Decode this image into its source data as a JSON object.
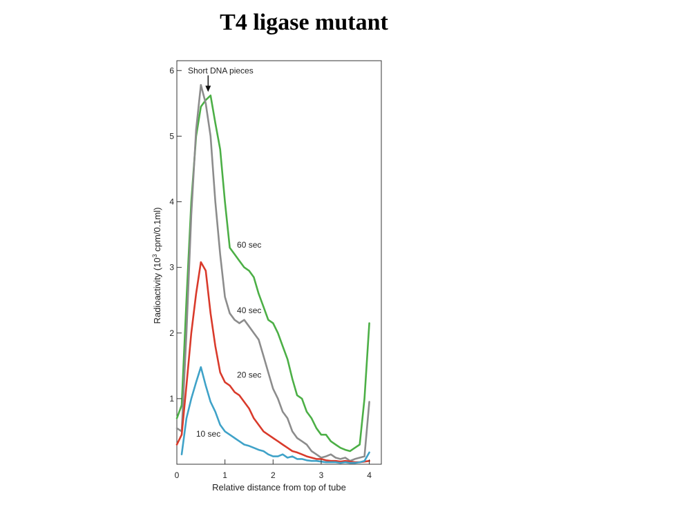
{
  "slide": {
    "title": "T4 ligase mutant"
  },
  "chart_data": {
    "type": "line",
    "xlabel": "Relative distance from top of tube",
    "ylabel_prefix": "Radioactivity (10",
    "ylabel_sup": "3",
    "ylabel_suffix": " cpm/0.1ml)",
    "xlim": [
      0,
      4.25
    ],
    "ylim": [
      0,
      6.15
    ],
    "xticks": [
      0,
      1,
      2,
      3,
      4
    ],
    "yticks": [
      1,
      2,
      3,
      4,
      5,
      6
    ],
    "grid": false,
    "annotation": {
      "text": "Short DNA pieces",
      "x": 0.65,
      "y": 6.0
    },
    "series": [
      {
        "name": "60 sec",
        "color": "#4caf46",
        "label_at": [
          1.25,
          3.3
        ],
        "x": [
          0.0,
          0.1,
          0.2,
          0.3,
          0.4,
          0.5,
          0.6,
          0.7,
          0.8,
          0.9,
          1.0,
          1.1,
          1.2,
          1.3,
          1.4,
          1.5,
          1.6,
          1.7,
          1.8,
          1.9,
          2.0,
          2.1,
          2.2,
          2.3,
          2.4,
          2.5,
          2.6,
          2.7,
          2.8,
          2.9,
          3.0,
          3.1,
          3.2,
          3.3,
          3.4,
          3.5,
          3.6,
          3.7,
          3.8,
          3.9,
          4.0
        ],
        "y": [
          0.7,
          0.9,
          2.5,
          4.0,
          5.0,
          5.45,
          5.55,
          5.62,
          5.2,
          4.8,
          4.0,
          3.3,
          3.2,
          3.1,
          3.0,
          2.95,
          2.85,
          2.6,
          2.4,
          2.2,
          2.15,
          2.0,
          1.8,
          1.6,
          1.3,
          1.05,
          1.0,
          0.8,
          0.7,
          0.55,
          0.45,
          0.45,
          0.35,
          0.3,
          0.25,
          0.22,
          0.2,
          0.25,
          0.3,
          1.0,
          2.15
        ]
      },
      {
        "name": "40 sec",
        "color": "#8c8c8c",
        "label_at": [
          1.25,
          2.3
        ],
        "x": [
          0.0,
          0.1,
          0.2,
          0.3,
          0.4,
          0.5,
          0.6,
          0.7,
          0.8,
          0.9,
          1.0,
          1.1,
          1.2,
          1.3,
          1.4,
          1.5,
          1.6,
          1.7,
          1.8,
          1.9,
          2.0,
          2.1,
          2.2,
          2.3,
          2.4,
          2.5,
          2.6,
          2.7,
          2.8,
          2.9,
          3.0,
          3.1,
          3.2,
          3.3,
          3.4,
          3.5,
          3.6,
          3.7,
          3.8,
          3.9,
          4.0
        ],
        "y": [
          0.55,
          0.5,
          2.0,
          3.8,
          5.1,
          5.78,
          5.5,
          5.0,
          4.0,
          3.2,
          2.55,
          2.3,
          2.2,
          2.15,
          2.2,
          2.1,
          2.0,
          1.9,
          1.65,
          1.4,
          1.15,
          1.0,
          0.8,
          0.7,
          0.5,
          0.4,
          0.35,
          0.3,
          0.2,
          0.15,
          0.1,
          0.12,
          0.15,
          0.1,
          0.08,
          0.1,
          0.05,
          0.08,
          0.1,
          0.12,
          0.95
        ]
      },
      {
        "name": "20 sec",
        "color": "#d93a2b",
        "label_at": [
          1.25,
          1.32
        ],
        "x": [
          0.0,
          0.1,
          0.2,
          0.3,
          0.4,
          0.5,
          0.6,
          0.7,
          0.8,
          0.9,
          1.0,
          1.1,
          1.2,
          1.3,
          1.4,
          1.5,
          1.6,
          1.7,
          1.8,
          1.9,
          2.0,
          2.1,
          2.2,
          2.3,
          2.4,
          2.5,
          2.6,
          2.7,
          2.8,
          2.9,
          3.0,
          3.1,
          3.2,
          3.3,
          3.4,
          3.5,
          3.6,
          3.7,
          3.8,
          3.9,
          4.0
        ],
        "y": [
          0.3,
          0.45,
          1.2,
          2.0,
          2.6,
          3.08,
          2.95,
          2.3,
          1.8,
          1.4,
          1.25,
          1.2,
          1.1,
          1.05,
          0.95,
          0.85,
          0.7,
          0.6,
          0.5,
          0.45,
          0.4,
          0.35,
          0.3,
          0.25,
          0.2,
          0.18,
          0.15,
          0.12,
          0.1,
          0.08,
          0.08,
          0.06,
          0.05,
          0.05,
          0.04,
          0.05,
          0.04,
          0.03,
          0.03,
          0.04,
          0.05
        ]
      },
      {
        "name": "10 sec",
        "color": "#3fa2c8",
        "label_at": [
          0.4,
          0.42
        ],
        "x": [
          0.1,
          0.2,
          0.3,
          0.4,
          0.5,
          0.6,
          0.7,
          0.8,
          0.9,
          1.0,
          1.1,
          1.2,
          1.3,
          1.4,
          1.5,
          1.6,
          1.7,
          1.8,
          1.9,
          2.0,
          2.1,
          2.2,
          2.3,
          2.4,
          2.5,
          2.6,
          2.7,
          2.8,
          2.9,
          3.0,
          3.1,
          3.2,
          3.3,
          3.4,
          3.5,
          3.6,
          3.7,
          3.8,
          3.9,
          4.0
        ],
        "y": [
          0.15,
          0.7,
          1.0,
          1.25,
          1.48,
          1.2,
          0.95,
          0.8,
          0.6,
          0.5,
          0.45,
          0.4,
          0.35,
          0.3,
          0.28,
          0.25,
          0.22,
          0.2,
          0.15,
          0.12,
          0.12,
          0.15,
          0.1,
          0.12,
          0.08,
          0.08,
          0.06,
          0.05,
          0.05,
          0.04,
          0.03,
          0.03,
          0.03,
          0.02,
          0.03,
          0.02,
          0.02,
          0.03,
          0.05,
          0.18
        ]
      }
    ]
  }
}
